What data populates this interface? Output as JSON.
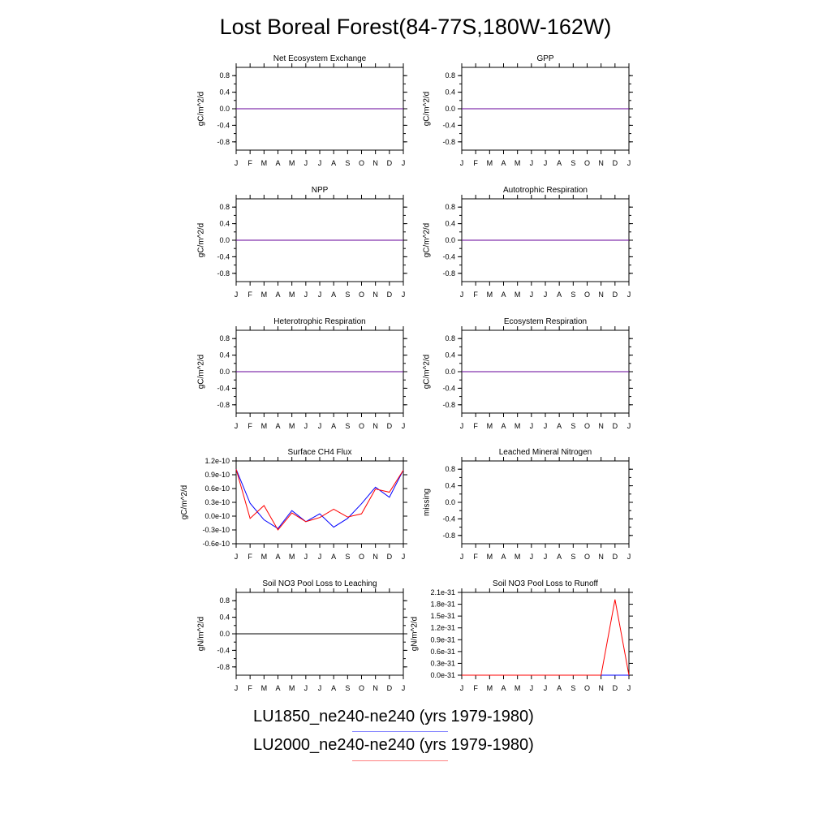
{
  "title": "Lost Boreal Forest(84-77S,180W-162W)",
  "months": [
    "J",
    "F",
    "M",
    "A",
    "M",
    "J",
    "J",
    "A",
    "S",
    "O",
    "N",
    "D",
    "J"
  ],
  "colors": {
    "series1": "#0000ff",
    "series2": "#ff0000",
    "zero_line": "#000000",
    "legend1": "#8080ff",
    "legend2": "#ff8080"
  },
  "legend": [
    {
      "label": "LU1850_ne240-ne240 (yrs 1979-1980)",
      "color": "#8080ff"
    },
    {
      "label": "LU2000_ne240-ne240 (yrs 1979-1980)",
      "color": "#ff8080"
    }
  ],
  "chart_data": [
    {
      "type": "line",
      "title": "Net Ecosystem Exchange",
      "ylabel": "gC/m^2/d",
      "ylim": [
        -1,
        1
      ],
      "ticks": [
        -0.8,
        -0.4,
        0.0,
        0.4,
        0.8
      ],
      "tick_labels": [
        "-0.8",
        "-0.4",
        "0.0",
        "0.4",
        "0.8"
      ],
      "series": [
        {
          "values": [
            0,
            0,
            0,
            0,
            0,
            0,
            0,
            0,
            0,
            0,
            0,
            0,
            0
          ],
          "color": "#0000ff"
        },
        {
          "values": [
            0,
            0,
            0,
            0,
            0,
            0,
            0,
            0,
            0,
            0,
            0,
            0,
            0
          ],
          "color": "#ff0000"
        }
      ]
    },
    {
      "type": "line",
      "title": "GPP",
      "ylabel": "gC/m^2/d",
      "ylim": [
        -1,
        1
      ],
      "ticks": [
        -0.8,
        -0.4,
        0.0,
        0.4,
        0.8
      ],
      "tick_labels": [
        "-0.8",
        "-0.4",
        "0.0",
        "0.4",
        "0.8"
      ],
      "series": [
        {
          "values": [
            0,
            0,
            0,
            0,
            0,
            0,
            0,
            0,
            0,
            0,
            0,
            0,
            0
          ],
          "color": "#0000ff"
        },
        {
          "values": [
            0,
            0,
            0,
            0,
            0,
            0,
            0,
            0,
            0,
            0,
            0,
            0,
            0
          ],
          "color": "#ff0000"
        }
      ]
    },
    {
      "type": "line",
      "title": "NPP",
      "ylabel": "gC/m^2/d",
      "ylim": [
        -1,
        1
      ],
      "ticks": [
        -0.8,
        -0.4,
        0.0,
        0.4,
        0.8
      ],
      "tick_labels": [
        "-0.8",
        "-0.4",
        "0.0",
        "0.4",
        "0.8"
      ],
      "series": [
        {
          "values": [
            0,
            0,
            0,
            0,
            0,
            0,
            0,
            0,
            0,
            0,
            0,
            0,
            0
          ],
          "color": "#0000ff"
        },
        {
          "values": [
            0,
            0,
            0,
            0,
            0,
            0,
            0,
            0,
            0,
            0,
            0,
            0,
            0
          ],
          "color": "#ff0000"
        }
      ]
    },
    {
      "type": "line",
      "title": "Autotrophic Respiration",
      "ylabel": "gC/m^2/d",
      "ylim": [
        -1,
        1
      ],
      "ticks": [
        -0.8,
        -0.4,
        0.0,
        0.4,
        0.8
      ],
      "tick_labels": [
        "-0.8",
        "-0.4",
        "0.0",
        "0.4",
        "0.8"
      ],
      "series": [
        {
          "values": [
            0,
            0,
            0,
            0,
            0,
            0,
            0,
            0,
            0,
            0,
            0,
            0,
            0
          ],
          "color": "#0000ff"
        },
        {
          "values": [
            0,
            0,
            0,
            0,
            0,
            0,
            0,
            0,
            0,
            0,
            0,
            0,
            0
          ],
          "color": "#ff0000"
        }
      ]
    },
    {
      "type": "line",
      "title": "Heterotrophic Respiration",
      "ylabel": "gC/m^2/d",
      "ylim": [
        -1,
        1
      ],
      "ticks": [
        -0.8,
        -0.4,
        0.0,
        0.4,
        0.8
      ],
      "tick_labels": [
        "-0.8",
        "-0.4",
        "0.0",
        "0.4",
        "0.8"
      ],
      "series": [
        {
          "values": [
            0,
            0,
            0,
            0,
            0,
            0,
            0,
            0,
            0,
            0,
            0,
            0,
            0
          ],
          "color": "#0000ff"
        },
        {
          "values": [
            0,
            0,
            0,
            0,
            0,
            0,
            0,
            0,
            0,
            0,
            0,
            0,
            0
          ],
          "color": "#ff0000"
        }
      ]
    },
    {
      "type": "line",
      "title": "Ecosystem Respiration",
      "ylabel": "gC/m^2/d",
      "ylim": [
        -1,
        1
      ],
      "ticks": [
        -0.8,
        -0.4,
        0.0,
        0.4,
        0.8
      ],
      "tick_labels": [
        "-0.8",
        "-0.4",
        "0.0",
        "0.4",
        "0.8"
      ],
      "series": [
        {
          "values": [
            0,
            0,
            0,
            0,
            0,
            0,
            0,
            0,
            0,
            0,
            0,
            0,
            0
          ],
          "color": "#0000ff"
        },
        {
          "values": [
            0,
            0,
            0,
            0,
            0,
            0,
            0,
            0,
            0,
            0,
            0,
            0,
            0
          ],
          "color": "#ff0000"
        }
      ]
    },
    {
      "type": "line",
      "title": "Surface CH4 Flux",
      "ylabel": "gC/m^2/d",
      "ylim": [
        -6e-11,
        1.2e-10
      ],
      "ticks": [
        -6e-11,
        -3e-11,
        0,
        3e-11,
        6e-11,
        9e-11,
        1.2e-10
      ],
      "tick_labels": [
        "-0.6e-10",
        "-0.3e-10",
        "0.0e-10",
        "0.3e-10",
        "0.6e-10",
        "0.9e-10",
        "1.2e-10"
      ],
      "series": [
        {
          "values": [
            1.02e-10,
            2.8e-11,
            -8e-12,
            -2.7e-11,
            1.2e-11,
            -1.2e-11,
            5e-12,
            -2.4e-11,
            -5e-12,
            2.7e-11,
            6.3e-11,
            4.1e-11,
            1e-10
          ],
          "color": "#0000ff"
        },
        {
          "values": [
            1.02e-10,
            -5e-12,
            2.3e-11,
            -3e-11,
            7e-12,
            -1.2e-11,
            -3e-12,
            1.5e-11,
            -2e-12,
            5e-12,
            5.9e-11,
            5.2e-11,
            1e-10
          ],
          "color": "#ff0000"
        }
      ]
    },
    {
      "type": "line",
      "title": "Leached Mineral Nitrogen",
      "ylabel": "missing",
      "ylim": [
        -1,
        1
      ],
      "ticks": [
        -0.8,
        -0.4,
        0.0,
        0.4,
        0.8
      ],
      "tick_labels": [
        "-0.8",
        "-0.4",
        "0.0",
        "0.4",
        "0.8"
      ],
      "series": []
    },
    {
      "type": "line",
      "title": "Soil NO3 Pool Loss to Leaching",
      "ylabel": "gN/m^2/d",
      "ylim": [
        -1,
        1
      ],
      "ticks": [
        -0.8,
        -0.4,
        0.0,
        0.4,
        0.8
      ],
      "tick_labels": [
        "-0.8",
        "-0.4",
        "0.0",
        "0.4",
        "0.8"
      ],
      "series": [
        {
          "values": [
            0,
            0,
            0,
            0,
            0,
            0,
            0,
            0,
            0,
            0,
            0,
            0,
            0
          ],
          "color": "#000000"
        }
      ]
    },
    {
      "type": "line",
      "title": "Soil NO3 Pool Loss to Runoff",
      "ylabel": "gN/m^2/d",
      "ylim": [
        0,
        2.1e-31
      ],
      "ticks": [
        0,
        3e-32,
        6e-32,
        9e-32,
        1.2e-31,
        1.5e-31,
        1.8e-31,
        2.1e-31
      ],
      "tick_labels": [
        "0.0e-31",
        "0.3e-31",
        "0.6e-31",
        "0.9e-31",
        "1.2e-31",
        "1.5e-31",
        "1.8e-31",
        "2.1e-31"
      ],
      "series": [
        {
          "values": [
            0,
            0,
            0,
            0,
            0,
            0,
            0,
            0,
            0,
            0,
            0,
            0,
            0
          ],
          "color": "#0000ff"
        },
        {
          "values": [
            0,
            0,
            0,
            0,
            0,
            0,
            0,
            0,
            0,
            0,
            0,
            1.92e-31,
            0
          ],
          "color": "#ff0000"
        }
      ]
    }
  ]
}
